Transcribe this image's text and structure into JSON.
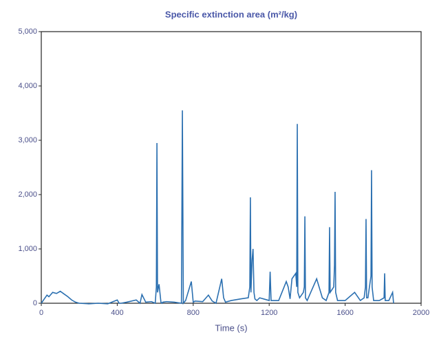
{
  "chart_data": {
    "type": "line",
    "title": "Specific extinction area (m²/kg)",
    "x_label": "Time (s)",
    "x": [
      0,
      10,
      20,
      30,
      40,
      50,
      60,
      80,
      100,
      120,
      140,
      160,
      180,
      200,
      250,
      300,
      350,
      400,
      410,
      420,
      450,
      500,
      520,
      530,
      550,
      580,
      600,
      606,
      609,
      612,
      620,
      630,
      635,
      640,
      660,
      700,
      738,
      743,
      748,
      760,
      790,
      800,
      810,
      850,
      880,
      900,
      920,
      950,
      960,
      970,
      1000,
      1050,
      1090,
      1098,
      1101,
      1104,
      1110,
      1115,
      1120,
      1125,
      1135,
      1150,
      1200,
      1205,
      1210,
      1250,
      1290,
      1300,
      1310,
      1320,
      1330,
      1340,
      1345,
      1348,
      1351,
      1360,
      1380,
      1385,
      1388,
      1391,
      1400,
      1450,
      1480,
      1500,
      1515,
      1518,
      1521,
      1540,
      1544,
      1547,
      1550,
      1560,
      1600,
      1650,
      1680,
      1700,
      1707,
      1710,
      1713,
      1720,
      1736,
      1739,
      1742,
      1750,
      1780,
      1805,
      1808,
      1811,
      1830,
      1850,
      1855
    ],
    "series": [
      {
        "color": "#2a6fb0",
        "values": [
          0,
          50,
          100,
          150,
          120,
          160,
          200,
          180,
          220,
          170,
          120,
          60,
          20,
          0,
          -10,
          0,
          -10,
          60,
          0,
          0,
          20,
          60,
          0,
          160,
          20,
          30,
          0,
          300,
          2950,
          200,
          350,
          20,
          0,
          20,
          30,
          20,
          0,
          3550,
          0,
          50,
          400,
          20,
          40,
          30,
          150,
          40,
          0,
          450,
          100,
          20,
          50,
          80,
          100,
          300,
          1950,
          200,
          800,
          1000,
          200,
          80,
          50,
          100,
          50,
          580,
          50,
          50,
          400,
          300,
          80,
          450,
          500,
          550,
          300,
          3300,
          200,
          100,
          200,
          300,
          1600,
          100,
          50,
          450,
          100,
          50,
          200,
          1400,
          200,
          300,
          700,
          2050,
          200,
          50,
          50,
          200,
          50,
          100,
          300,
          1550,
          100,
          100,
          500,
          2450,
          300,
          50,
          50,
          100,
          550,
          50,
          50,
          200,
          0
        ]
      }
    ],
    "xlim": [
      0,
      2000
    ],
    "xticks": [
      0,
      400,
      800,
      1200,
      1600,
      2000
    ],
    "ylim": [
      0,
      5000
    ],
    "yticks": [
      0,
      {
        "value": 1000,
        "label": "1,000"
      },
      {
        "value": 2000,
        "label": "2,000"
      },
      {
        "value": 3000,
        "label": "3,000"
      },
      {
        "value": 4000,
        "label": "4,000"
      },
      {
        "value": 5000,
        "label": "5,000"
      }
    ]
  }
}
